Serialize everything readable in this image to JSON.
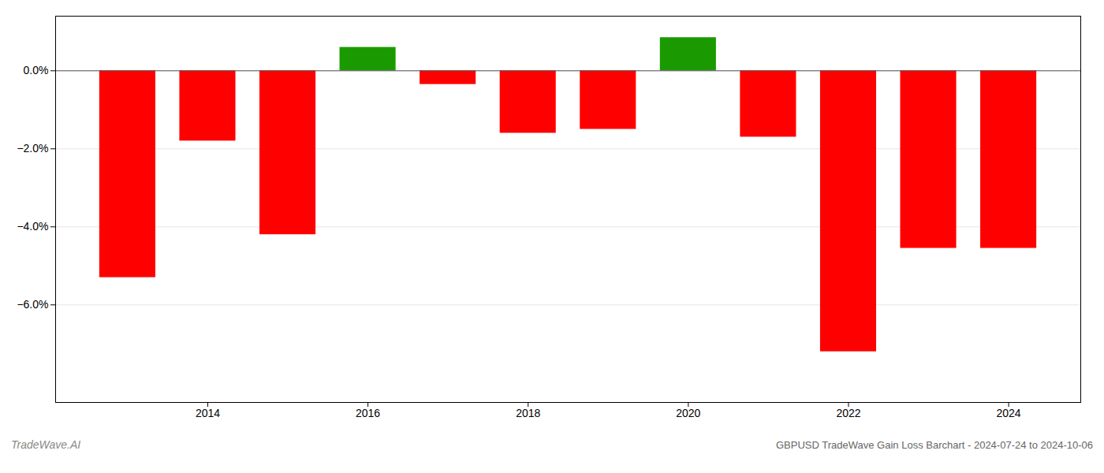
{
  "chart_data": {
    "type": "bar",
    "title": "GBPUSD TradeWave Gain Loss Barchart - 2024-07-24 to 2024-10-06",
    "annotations": [
      "TradeWave.AI"
    ],
    "x": [
      2013,
      2014,
      2015,
      2016,
      2017,
      2018,
      2019,
      2020,
      2021,
      2022,
      2023,
      2024
    ],
    "values": [
      -5.3,
      -1.8,
      -4.2,
      0.6,
      -0.35,
      -1.6,
      -1.5,
      0.85,
      -1.7,
      -7.2,
      -4.55,
      -4.55
    ],
    "colors": [
      "#ff0000",
      "#ff0000",
      "#ff0000",
      "#1a9a00",
      "#ff0000",
      "#ff0000",
      "#ff0000",
      "#1a9a00",
      "#ff0000",
      "#ff0000",
      "#ff0000",
      "#ff0000"
    ],
    "xlim": [
      2012.1,
      2024.9
    ],
    "xticks": [
      2014,
      2016,
      2018,
      2020,
      2022,
      2024
    ],
    "ylim": [
      -8.5,
      1.4
    ],
    "yticks": [
      {
        "value": 0.0,
        "label": "0.0%"
      },
      {
        "value": -2.0,
        "label": "−2.0%"
      },
      {
        "value": -4.0,
        "label": "−4.0%"
      },
      {
        "value": -6.0,
        "label": "−6.0%"
      }
    ],
    "grid": true
  }
}
